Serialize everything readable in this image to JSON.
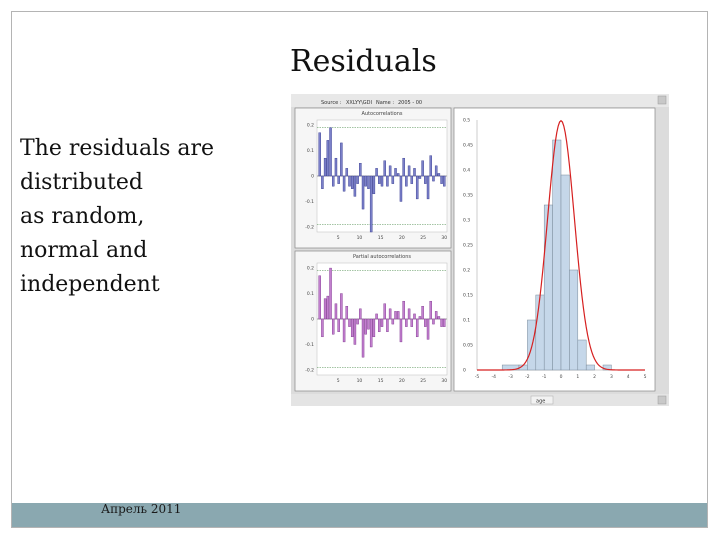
{
  "slide": {
    "title": "Residuals",
    "body_lines": [
      "The residuals are",
      "distributed",
      "as random,",
      "normal and",
      "independent"
    ],
    "footer": "Апрель 2011"
  },
  "screenshot": {
    "toolbar": {
      "source_label": "Source :",
      "source_value": "XXLYY\\GDI",
      "name_label": "Name :",
      "name_value": "2005 - 00"
    },
    "status": "age",
    "acf": {
      "title": "Autocorrelations",
      "y_ticks": [
        "0.2",
        "0.1",
        "0",
        "-0.1",
        "-0.2"
      ],
      "x_ticks": [
        "5",
        "10",
        "15",
        "20",
        "25",
        "30"
      ],
      "ylim": [
        -0.22,
        0.22
      ],
      "values": [
        0.17,
        -0.05,
        0.07,
        0.14,
        0.19,
        -0.04,
        0.07,
        -0.03,
        0.13,
        -0.06,
        0.03,
        -0.04,
        -0.05,
        -0.08,
        -0.03,
        0.05,
        -0.13,
        -0.04,
        -0.05,
        -0.22,
        -0.07,
        0.03,
        -0.03,
        -0.04,
        0.06,
        -0.04,
        0.04,
        -0.03,
        0.03,
        0.01,
        -0.1,
        0.07,
        -0.04,
        0.04,
        -0.03,
        0.03,
        -0.09,
        -0.01,
        0.06,
        -0.03,
        -0.09,
        0.08,
        -0.02,
        0.04,
        0.01,
        -0.03,
        -0.04
      ],
      "colors": {
        "bar": "#7b80c9",
        "bar_dark": "#2e338a",
        "band": "#4a8a4a"
      }
    },
    "pacf": {
      "title": "Partial autocorrelations",
      "y_ticks": [
        "0.2",
        "0.1",
        "0",
        "-0.1",
        "-0.2"
      ],
      "x_ticks": [
        "5",
        "10",
        "15",
        "20",
        "25",
        "30"
      ],
      "ylim": [
        -0.22,
        0.22
      ],
      "values": [
        0.17,
        -0.07,
        0.08,
        0.09,
        0.2,
        -0.06,
        0.06,
        -0.05,
        0.1,
        -0.09,
        0.05,
        -0.03,
        -0.07,
        -0.1,
        -0.02,
        0.04,
        -0.15,
        -0.06,
        -0.04,
        -0.11,
        -0.07,
        0.02,
        -0.05,
        -0.03,
        0.06,
        -0.05,
        0.04,
        -0.02,
        0.03,
        0.03,
        -0.09,
        0.07,
        -0.03,
        0.04,
        -0.03,
        0.02,
        -0.07,
        0.01,
        0.05,
        -0.03,
        -0.08,
        0.07,
        -0.02,
        0.03,
        0.01,
        -0.03,
        -0.03
      ],
      "colors": {
        "bar": "#c27fce",
        "bar_dark": "#7a2f8a",
        "band": "#4a8a4a"
      }
    },
    "histogram": {
      "y_ticks": [
        "0.5",
        "0.45",
        "0.4",
        "0.35",
        "0.3",
        "0.25",
        "0.2",
        "0.15",
        "0.1",
        "0.05",
        "0"
      ],
      "x_ticks": [
        "-5",
        "-4",
        "-3",
        "-2",
        "-1",
        "0",
        "1",
        "2",
        "3",
        "4",
        "5"
      ],
      "xlim": [
        -5,
        5
      ],
      "ylim": [
        0,
        0.5
      ],
      "bins": [
        {
          "x0": -3.5,
          "x1": -2.5,
          "v": 0.01
        },
        {
          "x0": -2.5,
          "x1": -2.0,
          "v": 0.01
        },
        {
          "x0": -2.0,
          "x1": -1.5,
          "v": 0.1
        },
        {
          "x0": -1.5,
          "x1": -1.0,
          "v": 0.15
        },
        {
          "x0": -1.0,
          "x1": -0.5,
          "v": 0.33
        },
        {
          "x0": -0.5,
          "x1": 0.0,
          "v": 0.46
        },
        {
          "x0": 0.0,
          "x1": 0.5,
          "v": 0.39
        },
        {
          "x0": 0.5,
          "x1": 1.0,
          "v": 0.2
        },
        {
          "x0": 1.0,
          "x1": 1.5,
          "v": 0.06
        },
        {
          "x0": 1.5,
          "x1": 2.0,
          "v": 0.01
        },
        {
          "x0": 2.5,
          "x1": 3.0,
          "v": 0.01
        }
      ],
      "curve": {
        "mean": 0.0,
        "sd": 0.8
      },
      "colors": {
        "bar": "#c5d7e9",
        "edge": "#7a8a9a",
        "curve": "#d62020"
      }
    }
  }
}
